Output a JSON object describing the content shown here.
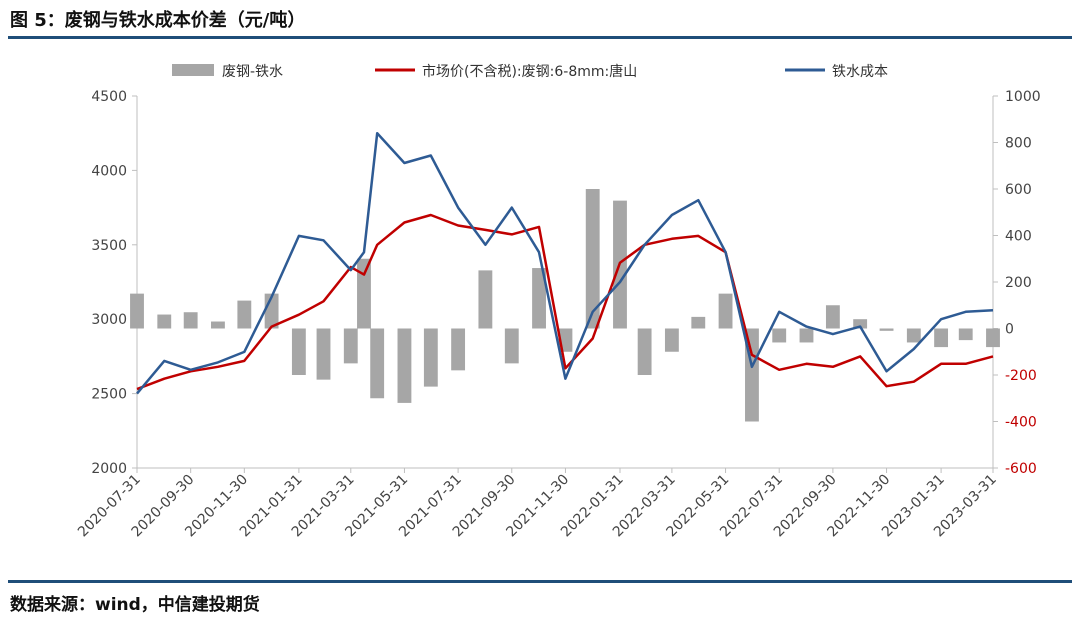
{
  "header": {
    "title": "图 5：废钢与铁水成本价差（元/吨）"
  },
  "footer": {
    "source": "数据来源：wind，中信建投期货"
  },
  "colors": {
    "spread": "#a6a6a6",
    "scrap": "#c00000",
    "iron": "#2e5b94",
    "rule": "#1f4e79",
    "axis_neg": "#c00000"
  },
  "chart_data": {
    "type": "bar+line",
    "title": "废钢与铁水成本价差（元/吨）",
    "dates": [
      "2020-07-31",
      "2020-08-31",
      "2020-09-30",
      "2020-10-31",
      "2020-11-30",
      "2020-12-31",
      "2021-01-31",
      "2021-02-28",
      "2021-03-31",
      "2021-04-15",
      "2021-04-30",
      "2021-05-31",
      "2021-06-30",
      "2021-07-31",
      "2021-08-31",
      "2021-09-30",
      "2021-10-31",
      "2021-11-30",
      "2021-12-31",
      "2022-01-31",
      "2022-02-28",
      "2022-03-31",
      "2022-04-30",
      "2022-05-31",
      "2022-06-30",
      "2022-07-31",
      "2022-08-31",
      "2022-09-30",
      "2022-10-31",
      "2022-11-30",
      "2022-12-31",
      "2023-01-31",
      "2023-02-28",
      "2023-03-31"
    ],
    "x_tick_labels": [
      "2020-07-31",
      "2020-09-30",
      "2020-11-30",
      "2021-01-31",
      "2021-03-31",
      "2021-05-31",
      "2021-07-31",
      "2021-09-30",
      "2021-11-30",
      "2022-01-31",
      "2022-03-31",
      "2022-05-31",
      "2022-07-31",
      "2022-09-30",
      "2022-11-30",
      "2023-01-31",
      "2023-03-31"
    ],
    "left_axis": {
      "label": "",
      "ylim": [
        2000,
        4500
      ],
      "ticks": [
        2000,
        2500,
        3000,
        3500,
        4000,
        4500
      ]
    },
    "right_axis": {
      "label": "",
      "ylim": [
        -600,
        1000
      ],
      "ticks": [
        -600,
        -400,
        -200,
        0,
        200,
        400,
        600,
        800,
        1000
      ]
    },
    "legend": {
      "position": "top",
      "items": [
        "废钢-铁水",
        "市场价(不含税):废钢:6-8mm:唐山",
        "铁水成本"
      ]
    },
    "series": [
      {
        "name": "废钢-铁水",
        "kind": "bar",
        "axis": "right",
        "values": [
          150,
          60,
          70,
          30,
          120,
          150,
          -200,
          -220,
          -150,
          300,
          -300,
          -320,
          -250,
          -180,
          250,
          -150,
          260,
          -100,
          600,
          550,
          -200,
          -100,
          50,
          150,
          -400,
          -60,
          -60,
          100,
          40,
          -10,
          -60,
          -80,
          -50,
          -80
        ]
      },
      {
        "name": "市场价(不含税):废钢:6-8mm:唐山",
        "kind": "line",
        "axis": "left",
        "values": [
          2530,
          2600,
          2650,
          2680,
          2720,
          2950,
          3030,
          3120,
          3350,
          3300,
          3500,
          3650,
          3700,
          3630,
          3600,
          3570,
          3620,
          2670,
          2870,
          3380,
          3500,
          3540,
          3560,
          3450,
          2760,
          2660,
          2700,
          2680,
          2750,
          2550,
          2580,
          2700,
          2700,
          2750
        ]
      },
      {
        "name": "铁水成本",
        "kind": "line",
        "axis": "left",
        "values": [
          2500,
          2720,
          2660,
          2710,
          2780,
          3150,
          3560,
          3530,
          3330,
          3450,
          4250,
          4050,
          4100,
          3750,
          3500,
          3750,
          3450,
          2600,
          3050,
          3250,
          3500,
          3700,
          3800,
          3450,
          2680,
          3050,
          2950,
          2900,
          2950,
          2650,
          2800,
          3000,
          3050,
          3060
        ]
      }
    ]
  }
}
